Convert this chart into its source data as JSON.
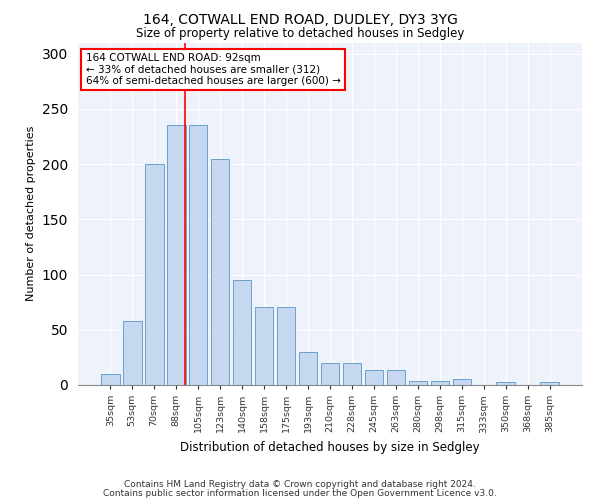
{
  "title1": "164, COTWALL END ROAD, DUDLEY, DY3 3YG",
  "title2": "Size of property relative to detached houses in Sedgley",
  "xlabel": "Distribution of detached houses by size in Sedgley",
  "ylabel": "Number of detached properties",
  "categories": [
    "35sqm",
    "53sqm",
    "70sqm",
    "88sqm",
    "105sqm",
    "123sqm",
    "140sqm",
    "158sqm",
    "175sqm",
    "193sqm",
    "210sqm",
    "228sqm",
    "245sqm",
    "263sqm",
    "280sqm",
    "298sqm",
    "315sqm",
    "333sqm",
    "350sqm",
    "368sqm",
    "385sqm"
  ],
  "values": [
    10,
    58,
    200,
    235,
    235,
    205,
    95,
    71,
    71,
    30,
    20,
    20,
    14,
    14,
    4,
    4,
    5,
    0,
    3,
    0,
    3
  ],
  "bar_color": "#c5d8f0",
  "bar_edge_color": "#6aa0cc",
  "red_line_x": 3.42,
  "annotation_line1": "164 COTWALL END ROAD: 92sqm",
  "annotation_line2": "← 33% of detached houses are smaller (312)",
  "annotation_line3": "64% of semi-detached houses are larger (600) →",
  "ylim": [
    0,
    310
  ],
  "yticks": [
    0,
    50,
    100,
    150,
    200,
    250,
    300
  ],
  "background_color": "#eef2fa",
  "footer1": "Contains HM Land Registry data © Crown copyright and database right 2024.",
  "footer2": "Contains public sector information licensed under the Open Government Licence v3.0."
}
